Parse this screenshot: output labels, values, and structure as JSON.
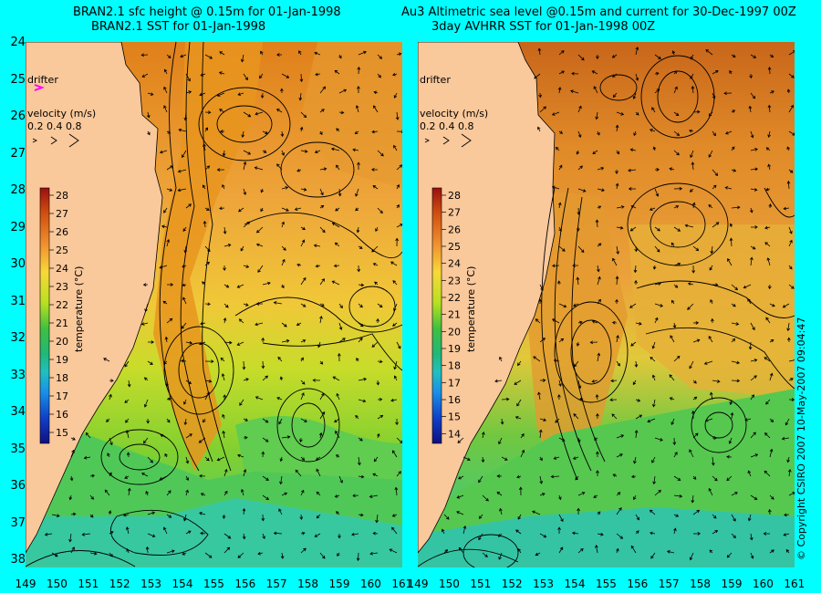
{
  "left_panel": {
    "title_line1": "BRAN2.1 sfc height @ 0.15m for 01-Jan-1998",
    "title_line2": "BRAN2.1 SST for 01-Jan-1998",
    "drifter_label": "drifter",
    "velocity_label": "velocity (m/s)",
    "velocity_scale": "0.2 0.4 0.8",
    "colorbar_label": "temperature (°C)",
    "colorbar_ticks": [
      "28",
      "27",
      "26",
      "25",
      "24",
      "23",
      "22",
      "21",
      "20",
      "19",
      "18",
      "17",
      "16",
      "15"
    ]
  },
  "right_panel": {
    "title_line1": "Au3 Altimetric sea level  @0.15m and current for 30-Dec-1997 00Z",
    "title_line2": "3day AVHRR SST for 01-Jan-1998 00Z",
    "drifter_label": "drifter",
    "velocity_label": "velocity (m/s)",
    "velocity_scale": "0.2 0.4 0.8",
    "colorbar_label": "temperature (°C)",
    "colorbar_ticks": [
      "28",
      "27",
      "26",
      "25",
      "24",
      "23",
      "22",
      "21",
      "20",
      "19",
      "18",
      "17",
      "16",
      "15",
      "14"
    ]
  },
  "lat_labels": [
    "24",
    "25",
    "26",
    "27",
    "28",
    "29",
    "30",
    "31",
    "32",
    "33",
    "34",
    "35",
    "36",
    "37",
    "38"
  ],
  "lon_labels": [
    "149",
    "150",
    "151",
    "152",
    "153",
    "154",
    "155",
    "156",
    "157",
    "158",
    "159",
    "160",
    "161"
  ],
  "copyright": "© Copyright CSIRO 2007   10-May-2007 09:04:47",
  "colors": {
    "background": "#00ffff",
    "land": "#f9c89b",
    "drifter": "#ff00ff"
  }
}
